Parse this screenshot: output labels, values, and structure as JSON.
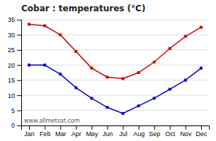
{
  "chart_data": {
    "type": "line",
    "title": "Cobar : temperatures (°C)",
    "categories": [
      "Jan",
      "Feb",
      "Mar",
      "Apr",
      "May",
      "Jun",
      "Jul",
      "Aug",
      "Sep",
      "Oct",
      "Nov",
      "Dec"
    ],
    "series": [
      {
        "color": "#cc0000",
        "marker": "square",
        "values": [
          33.5,
          33.0,
          30.0,
          24.5,
          19.0,
          16.0,
          15.5,
          17.5,
          21.0,
          25.5,
          29.5,
          32.5
        ]
      },
      {
        "color": "#0000cc",
        "marker": "square",
        "values": [
          20.0,
          20.0,
          17.0,
          12.5,
          9.0,
          6.0,
          4.0,
          6.5,
          9.0,
          12.0,
          15.0,
          19.0
        ]
      }
    ],
    "ylim": [
      0,
      35
    ],
    "yticks": [
      0,
      5,
      10,
      15,
      20,
      25,
      30,
      35
    ],
    "grid": true,
    "annotations": [
      "www.allmetsat.com"
    ]
  }
}
